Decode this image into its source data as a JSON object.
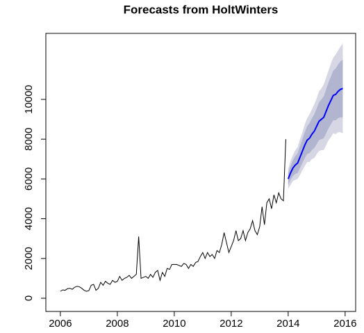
{
  "chart_data": {
    "type": "forecast",
    "title": "Forecasts from HoltWinters",
    "xlim": [
      2005.49,
      2016.37
    ],
    "ylim": [
      -664,
      13320
    ],
    "xticks": [
      2006,
      2008,
      2010,
      2012,
      2014,
      2016
    ],
    "yticks": [
      0,
      2000,
      4000,
      6000,
      8000,
      10000
    ],
    "observed": {
      "color": "#000000",
      "x": [
        2006,
        2006.083,
        2006.167,
        2006.25,
        2006.333,
        2006.417,
        2006.5,
        2006.583,
        2006.667,
        2006.75,
        2006.833,
        2006.917,
        2007,
        2007.083,
        2007.167,
        2007.25,
        2007.333,
        2007.417,
        2007.5,
        2007.583,
        2007.667,
        2007.75,
        2007.833,
        2007.917,
        2008,
        2008.083,
        2008.167,
        2008.25,
        2008.333,
        2008.417,
        2008.5,
        2008.583,
        2008.667,
        2008.75,
        2008.833,
        2008.917,
        2009,
        2009.083,
        2009.167,
        2009.25,
        2009.333,
        2009.417,
        2009.5,
        2009.583,
        2009.667,
        2009.75,
        2009.833,
        2009.917,
        2010,
        2010.083,
        2010.167,
        2010.25,
        2010.333,
        2010.417,
        2010.5,
        2010.583,
        2010.667,
        2010.75,
        2010.833,
        2010.917,
        2011,
        2011.083,
        2011.167,
        2011.25,
        2011.333,
        2011.417,
        2011.5,
        2011.583,
        2011.667,
        2011.75,
        2011.833,
        2011.917,
        2012,
        2012.083,
        2012.167,
        2012.25,
        2012.333,
        2012.417,
        2012.5,
        2012.583,
        2012.667,
        2012.75,
        2012.833,
        2012.917,
        2013,
        2013.083,
        2013.167,
        2013.25,
        2013.333,
        2013.417,
        2013.5,
        2013.583,
        2013.667,
        2013.75,
        2013.833,
        2013.917
      ],
      "values": [
        350,
        420,
        400,
        480,
        500,
        450,
        550,
        600,
        580,
        500,
        400,
        350,
        380,
        650,
        700,
        400,
        500,
        800,
        650,
        850,
        750,
        700,
        900,
        800,
        850,
        1100,
        900,
        1000,
        1050,
        1150,
        1000,
        1100,
        1200,
        3100,
        1000,
        1050,
        1100,
        1000,
        1200,
        1050,
        1300,
        1400,
        900,
        1300,
        1100,
        1500,
        1450,
        1700,
        1700,
        1700,
        1650,
        1600,
        1750,
        1700,
        1500,
        1700,
        1600,
        1800,
        1850,
        2100,
        2300,
        2000,
        2300,
        2100,
        2200,
        2000,
        2400,
        2300,
        2700,
        3300,
        2800,
        2300,
        2600,
        2900,
        3400,
        2900,
        3000,
        3400,
        2900,
        3300,
        3500,
        3900,
        3400,
        3200,
        3600,
        4600,
        3700,
        4800,
        5000,
        4500,
        5200,
        4800,
        5300,
        5000,
        4900,
        8000
      ]
    },
    "forecast": {
      "color": "#0000ff",
      "band80_color": "#b1b5cf",
      "band95_color": "#d6d6e4",
      "x": [
        2014,
        2014.083,
        2014.167,
        2014.25,
        2014.333,
        2014.417,
        2014.5,
        2014.583,
        2014.667,
        2014.75,
        2014.833,
        2014.917,
        2015,
        2015.083,
        2015.167,
        2015.25,
        2015.333,
        2015.417,
        2015.5,
        2015.583,
        2015.667,
        2015.75,
        2015.833,
        2015.917
      ],
      "mean": [
        6000,
        6300,
        6550,
        6700,
        6800,
        7100,
        7400,
        7700,
        7950,
        8050,
        8250,
        8400,
        8650,
        8900,
        9000,
        9100,
        9400,
        9700,
        9950,
        10200,
        10250,
        10400,
        10500,
        10550
      ],
      "lo80": [
        5700,
        5950,
        6150,
        6250,
        6300,
        6550,
        6800,
        7050,
        7250,
        7300,
        7450,
        7550,
        7750,
        7950,
        8000,
        8050,
        8300,
        8550,
        8750,
        8950,
        8950,
        9050,
        9100,
        9100
      ],
      "hi80": [
        6300,
        6650,
        6950,
        7150,
        7300,
        7650,
        8000,
        8350,
        8650,
        8800,
        9050,
        9250,
        9550,
        9850,
        10000,
        10150,
        10500,
        10850,
        11150,
        11450,
        11550,
        11750,
        11900,
        12000
      ],
      "lo95": [
        5500,
        5700,
        5900,
        5950,
        6000,
        6200,
        6450,
        6650,
        6850,
        6850,
        7000,
        7050,
        7250,
        7400,
        7450,
        7450,
        7700,
        7950,
        8100,
        8300,
        8250,
        8350,
        8350,
        8300
      ],
      "hi95": [
        6500,
        6900,
        7200,
        7450,
        7600,
        8000,
        8350,
        8750,
        9050,
        9250,
        9500,
        9750,
        10050,
        10400,
        10550,
        10750,
        11100,
        11450,
        11800,
        12100,
        12250,
        12450,
        12650,
        12800
      ]
    }
  }
}
